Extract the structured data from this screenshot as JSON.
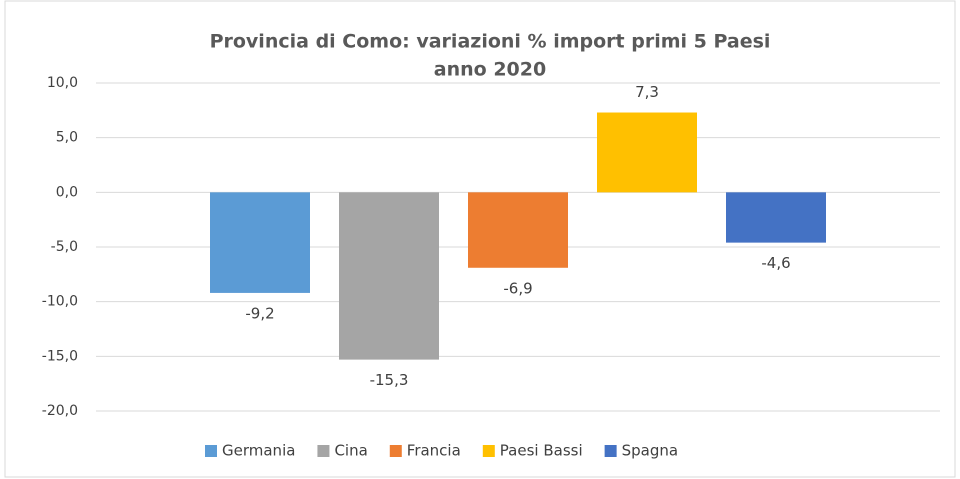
{
  "chart_data": {
    "type": "bar",
    "title": [
      "Provincia di Como: variazioni % import primi 5 Paesi",
      "anno 2020"
    ],
    "categories": [
      null
    ],
    "series": [
      {
        "name": "Germania",
        "color": "#5b9bd5",
        "values": [
          -9.2
        ],
        "value_labels": [
          "-9,2"
        ]
      },
      {
        "name": "Cina",
        "color": "#a5a5a5",
        "values": [
          -15.3
        ],
        "value_labels": [
          "-15,3"
        ]
      },
      {
        "name": "Francia",
        "color": "#ed7d31",
        "values": [
          -6.9
        ],
        "value_labels": [
          "-6,9"
        ]
      },
      {
        "name": "Paesi Bassi",
        "color": "#ffc000",
        "values": [
          7.3
        ],
        "value_labels": [
          "7,3"
        ]
      },
      {
        "name": "Spagna",
        "color": "#4472c4",
        "values": [
          -4.6
        ],
        "value_labels": [
          "-4,6"
        ]
      }
    ],
    "ylim": [
      -20,
      10
    ],
    "yticks": [
      {
        "value": -20,
        "label": "-20,0"
      },
      {
        "value": -15,
        "label": "-15,0"
      },
      {
        "value": -10,
        "label": "-10,0"
      },
      {
        "value": -5,
        "label": "-5,0"
      },
      {
        "value": 0,
        "label": "0,0"
      },
      {
        "value": 5,
        "label": "5,0"
      },
      {
        "value": 10,
        "label": "10,0"
      }
    ],
    "grid": true,
    "legend": "bottom"
  }
}
